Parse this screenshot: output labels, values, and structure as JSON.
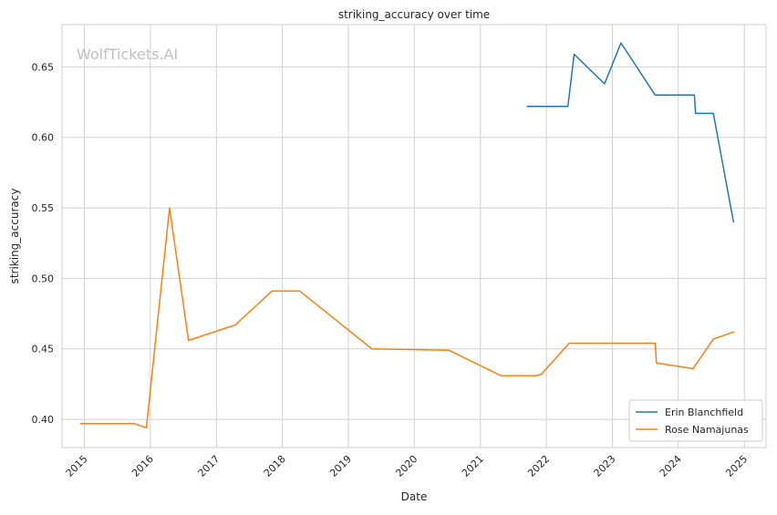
{
  "watermark": "WolfTickets.AI",
  "colors": {
    "blanchfield": "#1f77b4",
    "namajunas": "#ff7f0e",
    "grid": "#d0d0d0",
    "axes": "#cccccc",
    "watermark": "#c0c0c0"
  },
  "chart_data": {
    "type": "line",
    "title": "striking_accuracy over time",
    "xlabel": "Date",
    "ylabel": "striking_accuracy",
    "x_ticks": [
      "2015",
      "2016",
      "2017",
      "2018",
      "2019",
      "2020",
      "2021",
      "2022",
      "2023",
      "2024",
      "2025"
    ],
    "y_ticks": [
      "0.40",
      "0.45",
      "0.50",
      "0.55",
      "0.60",
      "0.65"
    ],
    "xlim": [
      "2014-08-30",
      "2025-05-01"
    ],
    "ylim": [
      0.38,
      0.68
    ],
    "grid": true,
    "legend_position": "lower-right",
    "series": [
      {
        "name": "Erin Blanchfield",
        "color": "#1f77b4",
        "points": [
          [
            "2021-09-18",
            0.622
          ],
          [
            "2022-04-30",
            0.622
          ],
          [
            "2022-06-04",
            0.659
          ],
          [
            "2022-11-19",
            0.638
          ],
          [
            "2023-02-18",
            0.667
          ],
          [
            "2023-08-26",
            0.63
          ],
          [
            "2024-03-30",
            0.63
          ],
          [
            "2024-04-06",
            0.617
          ],
          [
            "2024-07-13",
            0.617
          ],
          [
            "2024-11-02",
            0.54
          ]
        ]
      },
      {
        "name": "Rose Namajunas",
        "color": "#ff7f0e",
        "points": [
          [
            "2014-12-12",
            0.397
          ],
          [
            "2015-10-03",
            0.397
          ],
          [
            "2015-12-10",
            0.394
          ],
          [
            "2016-04-16",
            0.55
          ],
          [
            "2016-07-30",
            0.456
          ],
          [
            "2017-04-15",
            0.467
          ],
          [
            "2017-11-04",
            0.491
          ],
          [
            "2018-04-07",
            0.491
          ],
          [
            "2019-05-11",
            0.45
          ],
          [
            "2020-07-11",
            0.449
          ],
          [
            "2021-04-24",
            0.431
          ],
          [
            "2021-11-06",
            0.431
          ],
          [
            "2021-12-04",
            0.432
          ],
          [
            "2022-05-07",
            0.454
          ],
          [
            "2023-08-26",
            0.454
          ],
          [
            "2023-09-02",
            0.44
          ],
          [
            "2024-03-23",
            0.436
          ],
          [
            "2024-07-13",
            0.457
          ],
          [
            "2024-11-02",
            0.462
          ]
        ]
      }
    ]
  }
}
